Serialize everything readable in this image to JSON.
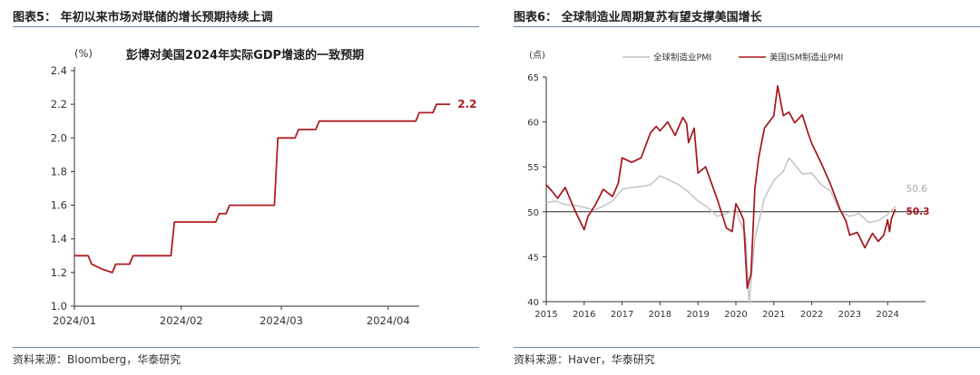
{
  "figures": [
    {
      "title": "图表5：  年初以来市场对联储的增长预期持续上调",
      "source": "资料来源：Bloomberg，华泰研究"
    },
    {
      "title": "图表6：  全球制造业周期复苏有望支撑美国增长",
      "source": "资料来源：Haver，华泰研究"
    }
  ],
  "chart_data": [
    {
      "type": "line",
      "title": "彭博对美国2024年实际GDP增速的一致预期",
      "unit_label": "(%)",
      "xlabel": "",
      "ylabel": "",
      "ylim": [
        1.0,
        2.4
      ],
      "yticks": [
        "1.0",
        "1.2",
        "1.4",
        "1.6",
        "1.8",
        "2.0",
        "2.2",
        "2.4"
      ],
      "xticks": [
        "2024/01",
        "2024/02",
        "2024/03",
        "2024/04"
      ],
      "grid": false,
      "series": [
        {
          "color": "#b11d24",
          "end_label": "2.2",
          "x": [
            "2024/01/01",
            "2024/01/05",
            "2024/01/06",
            "2024/01/09",
            "2024/01/12",
            "2024/01/13",
            "2024/01/17",
            "2024/01/18",
            "2024/01/29",
            "2024/01/30",
            "2024/02/11",
            "2024/02/12",
            "2024/02/14",
            "2024/02/15",
            "2024/02/17",
            "2024/02/18",
            "2024/02/28",
            "2024/02/29",
            "2024/03/05",
            "2024/03/06",
            "2024/03/11",
            "2024/03/12",
            "2024/03/23",
            "2024/03/24",
            "2024/04/09",
            "2024/04/10",
            "2024/04/14",
            "2024/04/15",
            "2024/04/19"
          ],
          "y": [
            1.3,
            1.3,
            1.25,
            1.22,
            1.2,
            1.25,
            1.25,
            1.3,
            1.3,
            1.5,
            1.5,
            1.55,
            1.55,
            1.6,
            1.6,
            1.6,
            1.6,
            2.0,
            2.0,
            2.05,
            2.05,
            2.1,
            2.1,
            2.1,
            2.1,
            2.15,
            2.15,
            2.2,
            2.2
          ]
        }
      ]
    },
    {
      "type": "line",
      "title": "",
      "unit_label": "(点)",
      "xlabel": "",
      "ylabel": "",
      "ylim": [
        40,
        65
      ],
      "yticks": [
        "40",
        "45",
        "50",
        "55",
        "60",
        "65"
      ],
      "xlim": [
        2015,
        2025
      ],
      "xticks": [
        "2015",
        "2016",
        "2017",
        "2018",
        "2019",
        "2020",
        "2021",
        "2022",
        "2023",
        "2024"
      ],
      "reference_line": 50,
      "legend_position": "top",
      "series": [
        {
          "name": "全球制造业PMI",
          "color": "#c4c4c4",
          "end_label": "50.6",
          "x": [
            2015.0,
            2015.25,
            2015.5,
            2015.75,
            2016.0,
            2016.25,
            2016.5,
            2016.75,
            2017.0,
            2017.25,
            2017.5,
            2017.75,
            2018.0,
            2018.25,
            2018.5,
            2018.75,
            2019.0,
            2019.25,
            2019.5,
            2019.75,
            2020.0,
            2020.1,
            2020.25,
            2020.35,
            2020.5,
            2020.75,
            2021.0,
            2021.25,
            2021.4,
            2021.5,
            2021.75,
            2022.0,
            2022.25,
            2022.5,
            2022.75,
            2023.0,
            2023.25,
            2023.5,
            2023.75,
            2024.0,
            2024.2
          ],
          "y": [
            51.0,
            51.2,
            50.8,
            50.7,
            50.5,
            50.2,
            50.6,
            51.2,
            52.5,
            52.7,
            52.8,
            53.0,
            54.0,
            53.5,
            53.0,
            52.2,
            51.2,
            50.5,
            49.5,
            49.8,
            50.2,
            49.0,
            47.5,
            39.8,
            47.0,
            51.5,
            53.5,
            54.5,
            56.0,
            55.5,
            54.2,
            54.3,
            53.0,
            52.3,
            50.0,
            49.5,
            49.8,
            48.8,
            49.0,
            49.7,
            50.6
          ]
        },
        {
          "name": "美国ISM制造业PMI",
          "color": "#a5151c",
          "end_label": "50.3",
          "x": [
            2015.0,
            2015.15,
            2015.3,
            2015.5,
            2015.75,
            2016.0,
            2016.1,
            2016.3,
            2016.5,
            2016.75,
            2016.9,
            2017.0,
            2017.25,
            2017.5,
            2017.75,
            2017.9,
            2018.0,
            2018.2,
            2018.4,
            2018.6,
            2018.7,
            2018.75,
            2018.9,
            2019.0,
            2019.2,
            2019.5,
            2019.75,
            2019.9,
            2020.0,
            2020.1,
            2020.2,
            2020.3,
            2020.4,
            2020.5,
            2020.6,
            2020.75,
            2021.0,
            2021.1,
            2021.25,
            2021.4,
            2021.55,
            2021.75,
            2021.9,
            2022.0,
            2022.25,
            2022.5,
            2022.75,
            2022.9,
            2023.0,
            2023.2,
            2023.4,
            2023.6,
            2023.75,
            2023.9,
            2024.0,
            2024.05,
            2024.1,
            2024.2
          ],
          "y": [
            53.0,
            52.3,
            51.5,
            52.7,
            50.2,
            48.0,
            49.5,
            50.8,
            52.5,
            51.7,
            53.2,
            56.0,
            55.5,
            56.0,
            58.8,
            59.5,
            59.0,
            60.0,
            58.5,
            60.5,
            59.8,
            57.7,
            59.3,
            54.3,
            55.0,
            51.5,
            48.2,
            47.8,
            50.9,
            50.1,
            49.1,
            41.5,
            43.1,
            52.6,
            56.0,
            59.3,
            60.7,
            64.0,
            60.7,
            61.1,
            59.9,
            60.8,
            58.8,
            57.6,
            55.4,
            53.0,
            50.2,
            49.0,
            47.4,
            47.7,
            46.0,
            47.6,
            46.7,
            47.4,
            49.1,
            47.8,
            49.2,
            50.3
          ]
        }
      ]
    }
  ]
}
